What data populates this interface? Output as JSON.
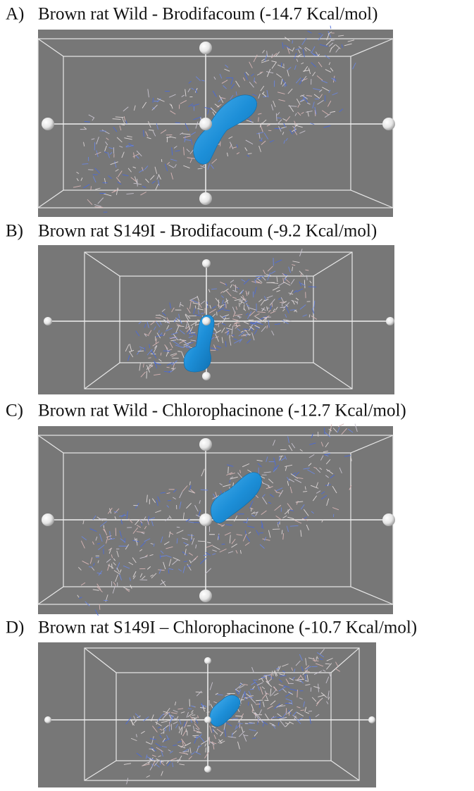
{
  "panels": [
    {
      "label": "A)",
      "title": "Brown rat Wild - Brodifacoum (-14.7 Kcal/mol)"
    },
    {
      "label": "B)",
      "title": "Brown rat S149I - Brodifacoum (-9.2 Kcal/mol)"
    },
    {
      "label": "C)",
      "title": "Brown rat Wild - Chlorophacinone (-12.7 Kcal/mol)"
    },
    {
      "label": "D)",
      "title": "Brown rat S149I – Chlorophacinone (-10.7 Kcal/mol)"
    }
  ]
}
